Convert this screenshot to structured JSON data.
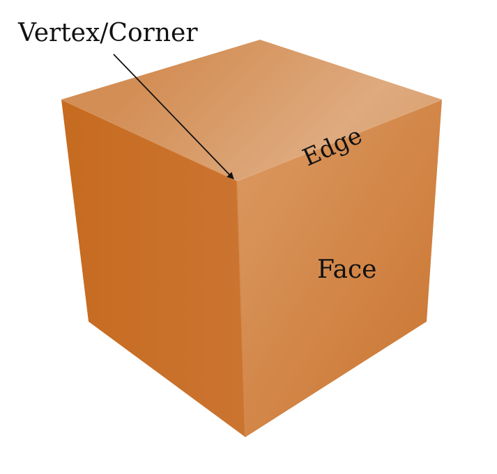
{
  "diagram": {
    "labels": {
      "vertex": "Vertex/Corner",
      "edge": "Edge",
      "face": "Face"
    },
    "colors": {
      "top_face_light": "#deaa7e",
      "top_face_dark": "#d38e55",
      "front_face_light": "#dc9a63",
      "front_face_dark": "#c9742f",
      "left_face_light": "#c66b20",
      "left_face_dark": "#cb7431",
      "text": "#111111",
      "arrow": "#111111"
    }
  }
}
